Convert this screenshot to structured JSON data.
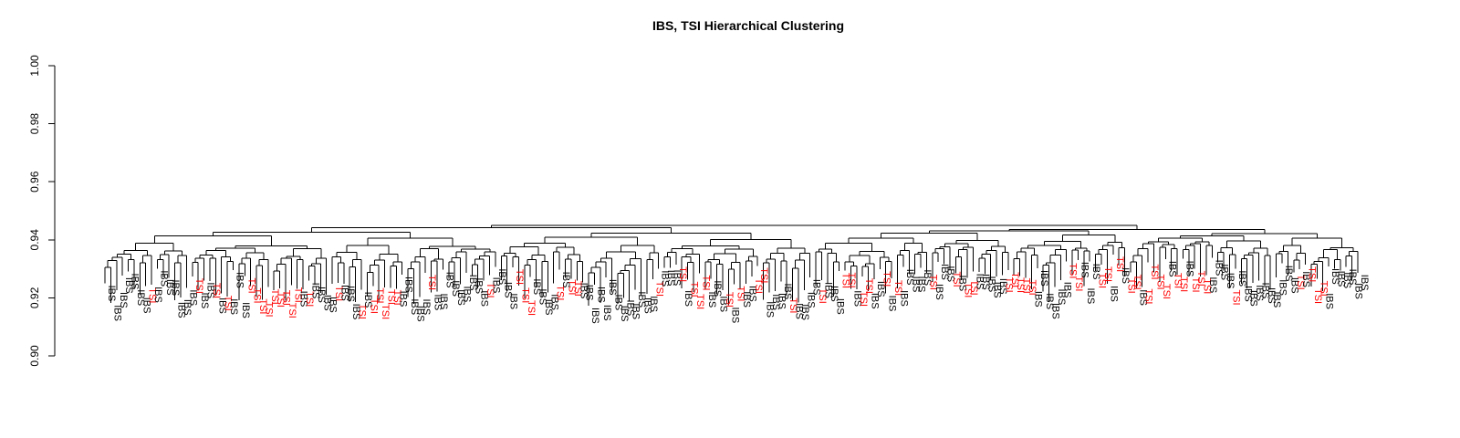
{
  "chart_data": {
    "type": "dendrogram",
    "title": "IBS, TSI Hierarchical Clustering",
    "xlabel": "",
    "ylabel": "",
    "ylim": [
      0.9,
      1.0
    ],
    "yticks": [
      0.9,
      0.92,
      0.94,
      0.96,
      0.98,
      1.0
    ],
    "ytick_labels": [
      "0.90",
      "0.92",
      "0.94",
      "0.96",
      "0.98",
      "1.00"
    ],
    "grid": false,
    "merge_height_range": [
      0.9115,
      0.945
    ],
    "label_colors": {
      "IBS": "#000000",
      "TSI": "#ff0000"
    },
    "leaf_order": [
      "IBS",
      "IBS",
      "IBS",
      "IBS",
      "IBS",
      "IBS",
      "IBS",
      "TSI",
      "IBS",
      "IBS",
      "IBS",
      "IBS",
      "IBS",
      "IBS",
      "IBS",
      "TSI",
      "IBS",
      "IBS",
      "TSI",
      "IBS",
      "TSI",
      "IBS",
      "IBS",
      "IBS",
      "TSI",
      "TSI",
      "TSI",
      "TSI",
      "TSI",
      "TSI",
      "TSI",
      "TSI",
      "TSI",
      "IBS",
      "TSI",
      "IBS",
      "IBS",
      "IBS",
      "IBS",
      "TSI",
      "IBS",
      "IBS",
      "IBS",
      "TSI",
      "IBS",
      "TSI",
      "TSI",
      "TSI",
      "TSI",
      "TSI",
      "IBS",
      "IBS",
      "IBS",
      "IBS",
      "IBS",
      "TSI",
      "IBS",
      "IBS",
      "IBS",
      "IBS",
      "IBS",
      "IBS",
      "IBS",
      "IBS",
      "IBS",
      "TSI",
      "IBS",
      "IBS",
      "IBS",
      "IBS",
      "TSI",
      "TSI",
      "TSI",
      "IBS",
      "IBS",
      "IBS",
      "IBS",
      "TSI",
      "IBS",
      "TSI",
      "TSI",
      "IBS",
      "IBS",
      "IBS",
      "IBS",
      "IBS",
      "IBS",
      "IBS",
      "IBS",
      "IBS",
      "IBS",
      "IBS",
      "IBS",
      "IBS",
      "TSI",
      "IBS",
      "IBS",
      "IBS",
      "TSI",
      "IBS",
      "TSI",
      "TSI",
      "TSI",
      "IBS",
      "IBS",
      "IBS",
      "TSI",
      "IBS",
      "TSI",
      "IBS",
      "IBS",
      "TSI",
      "TSI",
      "IBS",
      "IBS",
      "IBS",
      "IBS",
      "TSI",
      "IBS",
      "IBS",
      "IBS",
      "IBS",
      "TSI",
      "IBS",
      "IBS",
      "IBS",
      "TSI",
      "TSI",
      "IBS",
      "TSI",
      "TSI",
      "IBS",
      "IBS",
      "TSI",
      "IBS",
      "TSI",
      "IBS",
      "IBS",
      "IBS",
      "IBS",
      "IBS",
      "TSI",
      "IBS",
      "IBS",
      "IBS",
      "TSI",
      "IBS",
      "TSI",
      "TSI",
      "IBS",
      "IBS",
      "IBS",
      "IBS",
      "IBS",
      "TSI",
      "TSI",
      "TSI",
      "TSI",
      "TSI",
      "IBS",
      "IBS",
      "IBS",
      "IBS",
      "IBS",
      "IBS",
      "TSI",
      "TSI",
      "IBS",
      "IBS",
      "IBS",
      "TSI",
      "TSI",
      "IBS",
      "TSI",
      "IBS",
      "TSI",
      "TSI",
      "IBS",
      "TSI",
      "TSI",
      "TSI",
      "TSI",
      "IBS",
      "TSI",
      "TSI",
      "IBS",
      "TSI",
      "TSI",
      "TSI",
      "IBS",
      "IBS",
      "IBS",
      "IBS",
      "TSI",
      "IBS",
      "IBS",
      "IBS",
      "IBS",
      "IBS",
      "IBS",
      "IBS",
      "IBS",
      "IBS",
      "IBS",
      "TSI",
      "IBS",
      "TSI",
      "TSI",
      "TSI",
      "IBS",
      "IBS",
      "IBS",
      "IBS",
      "IBS",
      "IBS",
      "IBS"
    ]
  }
}
